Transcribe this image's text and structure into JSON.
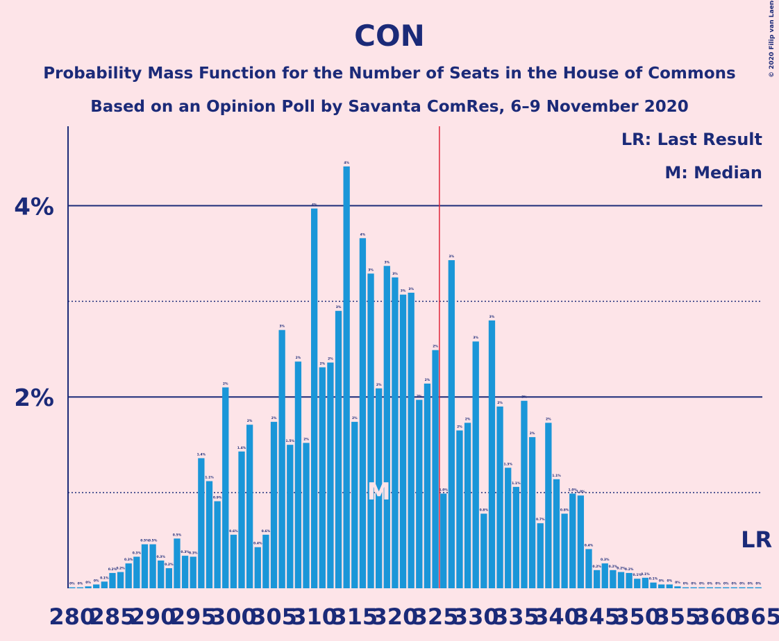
{
  "chart_data": {
    "type": "bar",
    "title": "CON",
    "subtitle": "Probability Mass Function for the Number of Seats in the House of Commons",
    "subtitle2": "Based on an Opinion Poll by Savanta ComRes, 6–9 November 2020",
    "copyright": "© 2020 Filip van Laenen",
    "legend": [
      "LR: Last Result",
      "M: Median"
    ],
    "color": "#1a96d8",
    "x": [
      280,
      281,
      282,
      283,
      284,
      285,
      286,
      287,
      288,
      289,
      290,
      291,
      292,
      293,
      294,
      295,
      296,
      297,
      298,
      299,
      300,
      301,
      302,
      303,
      304,
      305,
      306,
      307,
      308,
      309,
      310,
      311,
      312,
      313,
      314,
      315,
      316,
      317,
      318,
      319,
      320,
      321,
      322,
      323,
      324,
      325,
      326,
      327,
      328,
      329,
      330,
      331,
      332,
      333,
      334,
      335,
      336,
      337,
      338,
      339,
      340,
      341,
      342,
      343,
      344,
      345,
      346,
      347,
      348,
      349,
      350,
      351,
      352,
      353,
      354,
      355,
      356,
      357,
      358,
      359,
      360,
      361,
      362,
      363,
      364,
      365
    ],
    "values": [
      0.01,
      0.01,
      0.02,
      0.04,
      0.07,
      0.16,
      0.17,
      0.26,
      0.33,
      0.46,
      0.46,
      0.29,
      0.21,
      0.52,
      0.34,
      0.33,
      1.36,
      1.12,
      0.91,
      2.1,
      0.56,
      1.43,
      1.71,
      0.43,
      0.56,
      1.74,
      2.7,
      1.5,
      2.37,
      1.52,
      3.97,
      2.31,
      2.36,
      2.9,
      4.41,
      1.74,
      3.66,
      3.29,
      2.09,
      3.37,
      3.25,
      3.07,
      3.09,
      1.97,
      2.14,
      2.49,
      0.99,
      3.43,
      1.65,
      1.73,
      2.58,
      0.78,
      2.8,
      1.9,
      1.26,
      1.06,
      1.96,
      1.58,
      0.68,
      1.73,
      1.14,
      0.78,
      0.99,
      0.97,
      0.41,
      0.19,
      0.26,
      0.19,
      0.17,
      0.16,
      0.1,
      0.11,
      0.06,
      0.04,
      0.04,
      0.02,
      0.01,
      0.01,
      0.01,
      0.01,
      0.01,
      0.01,
      0.01,
      0.01,
      0.01,
      0.01
    ],
    "value_labels": [
      "0%",
      "0%",
      "0%",
      "0%",
      "0.1%",
      "0.2%",
      "0.2%",
      "0.3%",
      "0.3%",
      "0.5%",
      "0.5%",
      "0.3%",
      "0.2%",
      "0.5%",
      "0.3%",
      "0.3%",
      "1.4%",
      "1.1%",
      "0.9%",
      "2%",
      "0.6%",
      "1.4%",
      "2%",
      "0.4%",
      "0.6%",
      "2%",
      "3%",
      "1.5%",
      "2%",
      "2%",
      "4%",
      "2%",
      "2%",
      "3%",
      "4%",
      "2%",
      "4%",
      "3%",
      "2%",
      "3%",
      "3%",
      "3%",
      "3%",
      "2%",
      "2%",
      "2%",
      "1.0%",
      "3%",
      "2%",
      "2%",
      "3%",
      "0.8%",
      "3%",
      "2%",
      "1.3%",
      "1.1%",
      "2%",
      "2%",
      "0.7%",
      "2%",
      "1.1%",
      "0.8%",
      "1.0%",
      "1.0%",
      "0.4%",
      "0.2%",
      "0.3%",
      "0.2%",
      "0.2%",
      "0.2%",
      "0.1%",
      "0.1%",
      "0.1%",
      "0%",
      "0%",
      "0%",
      "0%",
      "0%",
      "0%",
      "0%",
      "0%",
      "0%",
      "0%",
      "0%",
      "0%",
      "0%"
    ],
    "xlim": [
      279.5,
      365.5
    ],
    "xticks": [
      280,
      285,
      290,
      295,
      300,
      305,
      310,
      315,
      320,
      325,
      330,
      335,
      340,
      345,
      350,
      355,
      360,
      365
    ],
    "ylim": [
      0,
      4.83
    ],
    "yticks": [
      {
        "value": 2,
        "label": "2%"
      },
      {
        "value": 4,
        "label": "4%"
      }
    ],
    "minor_yticks": [
      1,
      3
    ],
    "grid": true,
    "majority_x": 325.5,
    "median": 318,
    "median_label": "M",
    "last_result": 365,
    "last_result_label": "LR"
  }
}
